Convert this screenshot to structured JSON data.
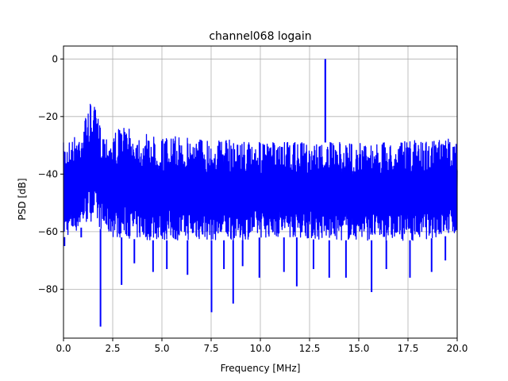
{
  "chart_data": {
    "type": "line",
    "title": "channel068 logain",
    "xlabel": "Frequency [MHz]",
    "ylabel": "PSD [dB]",
    "xlim": [
      0,
      20
    ],
    "ylim": [
      -97,
      4.5
    ],
    "x_ticks": [
      0,
      2.5,
      5,
      7.5,
      10,
      12.5,
      15,
      17.5,
      20
    ],
    "x_tick_labels": [
      "0.0",
      "2.5",
      "5.0",
      "7.5",
      "10.0",
      "12.5",
      "15.0",
      "17.5",
      "20.0"
    ],
    "y_ticks": [
      0,
      -20,
      -40,
      -60,
      -80
    ],
    "y_tick_labels": [
      "0",
      "−20",
      "−40",
      "−60",
      "−80"
    ],
    "grid": true,
    "series": [
      {
        "color": "#0000ff",
        "upper_envelope": {
          "x": [
            0.0,
            0.2,
            0.5,
            0.8,
            1.0,
            1.2,
            1.4,
            1.6,
            1.8,
            2.0,
            2.3,
            2.6,
            3.0,
            3.5,
            4.0,
            5.0,
            6.0,
            7.0,
            8.0,
            9.0,
            10.0,
            11.0,
            12.0,
            13.0,
            14.0,
            15.0,
            16.0,
            17.0,
            18.0,
            19.0,
            20.0
          ],
          "y": [
            -29,
            -28,
            -27,
            -25,
            -22,
            -18,
            -15,
            -17,
            -21,
            -25,
            -26,
            -25,
            -23,
            -25,
            -26,
            -27,
            -27,
            -27,
            -28,
            -28,
            -29,
            -29,
            -29,
            -29,
            -29,
            -29,
            -29,
            -29,
            -28,
            -28,
            -27
          ]
        },
        "lower_envelope": {
          "x": [
            0.0,
            0.5,
            1.0,
            1.5,
            2.0,
            2.5,
            3.0,
            4.0,
            5.0,
            6.0,
            7.0,
            8.0,
            9.0,
            10.0,
            11.0,
            12.0,
            13.0,
            14.0,
            15.0,
            16.0,
            17.0,
            18.0,
            19.0,
            20.0
          ],
          "y": [
            -62,
            -61,
            -58,
            -56,
            -60,
            -62,
            -62,
            -63,
            -63,
            -63,
            -63,
            -63,
            -63,
            -62,
            -62,
            -62,
            -63,
            -63,
            -63,
            -63,
            -63,
            -63,
            -62,
            -61
          ]
        },
        "peaks": [
          {
            "x": 13.3,
            "y": 0
          }
        ],
        "dips": [
          {
            "x": 0.05,
            "y": -65
          },
          {
            "x": 0.9,
            "y": -62
          },
          {
            "x": 1.88,
            "y": -93
          },
          {
            "x": 2.95,
            "y": -78.5
          },
          {
            "x": 3.6,
            "y": -71
          },
          {
            "x": 4.55,
            "y": -74
          },
          {
            "x": 5.25,
            "y": -73
          },
          {
            "x": 6.3,
            "y": -75
          },
          {
            "x": 7.52,
            "y": -88
          },
          {
            "x": 8.15,
            "y": -73
          },
          {
            "x": 8.62,
            "y": -85
          },
          {
            "x": 9.1,
            "y": -72
          },
          {
            "x": 9.95,
            "y": -76
          },
          {
            "x": 11.2,
            "y": -74
          },
          {
            "x": 11.85,
            "y": -79
          },
          {
            "x": 12.7,
            "y": -73
          },
          {
            "x": 13.5,
            "y": -76
          },
          {
            "x": 14.35,
            "y": -76
          },
          {
            "x": 15.65,
            "y": -81
          },
          {
            "x": 16.4,
            "y": -73
          },
          {
            "x": 17.6,
            "y": -76
          },
          {
            "x": 18.7,
            "y": -74
          },
          {
            "x": 19.4,
            "y": -70
          }
        ]
      }
    ]
  }
}
